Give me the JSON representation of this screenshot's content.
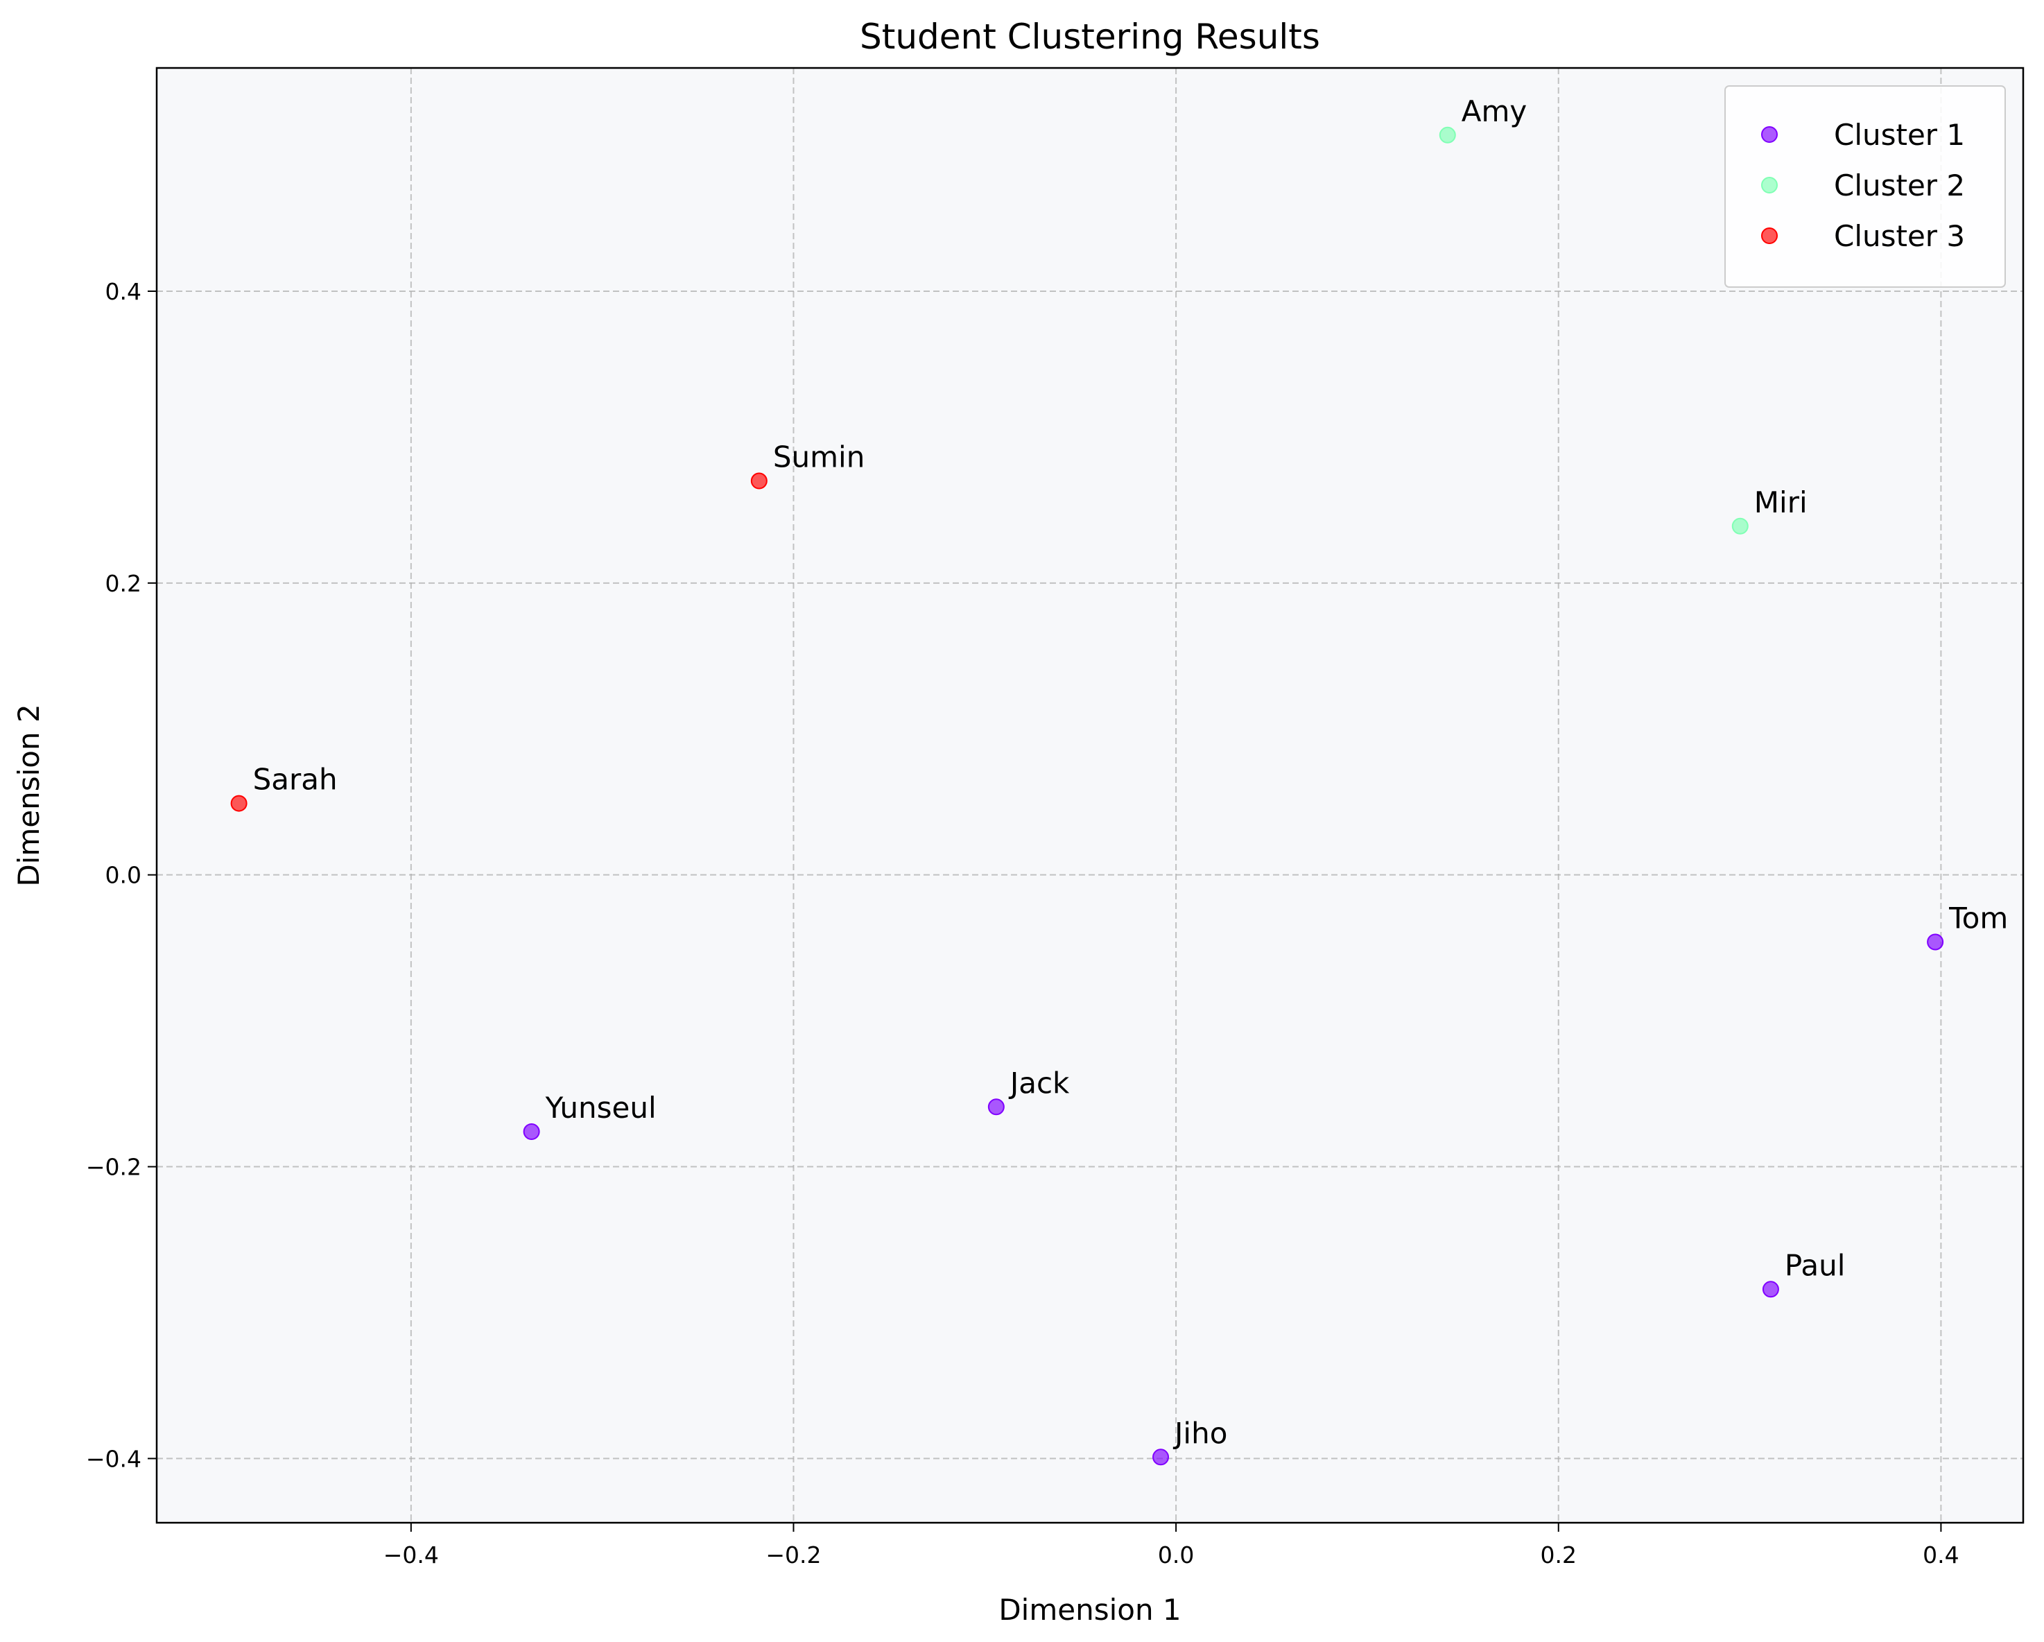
{
  "chart_data": {
    "type": "scatter",
    "title": "Student Clustering Results",
    "xlabel": "Dimension 1",
    "ylabel": "Dimension 2",
    "xlim": [
      -0.533,
      0.443
    ],
    "ylim": [
      -0.444,
      0.553
    ],
    "xticks": [
      -0.4,
      -0.2,
      0.0,
      0.2,
      0.4
    ],
    "xtick_labels": [
      "−0.4",
      "−0.2",
      "0.0",
      "0.2",
      "0.4"
    ],
    "yticks": [
      -0.4,
      -0.2,
      0.0,
      0.2,
      0.4
    ],
    "ytick_labels": [
      "−0.4",
      "−0.2",
      "0.0",
      "0.2",
      "0.4"
    ],
    "grid": true,
    "grid_style": "dashed",
    "legend_position": "top-right",
    "plot_background": "#f7f8fa",
    "series": [
      {
        "name": "Cluster 1",
        "color": "#8000ff",
        "points": [
          {
            "label": "Tom",
            "x": 0.397,
            "y": -0.046
          },
          {
            "label": "Paul",
            "x": 0.311,
            "y": -0.284
          },
          {
            "label": "Jack",
            "x": -0.094,
            "y": -0.159
          },
          {
            "label": "Yunseul",
            "x": -0.337,
            "y": -0.176
          },
          {
            "label": "Jiho",
            "x": -0.008,
            "y": -0.399
          }
        ]
      },
      {
        "name": "Cluster 2",
        "color": "#80ffb4",
        "points": [
          {
            "label": "Amy",
            "x": 0.142,
            "y": 0.507
          },
          {
            "label": "Miri",
            "x": 0.295,
            "y": 0.239
          }
        ]
      },
      {
        "name": "Cluster 3",
        "color": "#ff0000",
        "points": [
          {
            "label": "Sarah",
            "x": -0.49,
            "y": 0.049
          },
          {
            "label": "Sumin",
            "x": -0.218,
            "y": 0.27
          }
        ]
      }
    ]
  }
}
